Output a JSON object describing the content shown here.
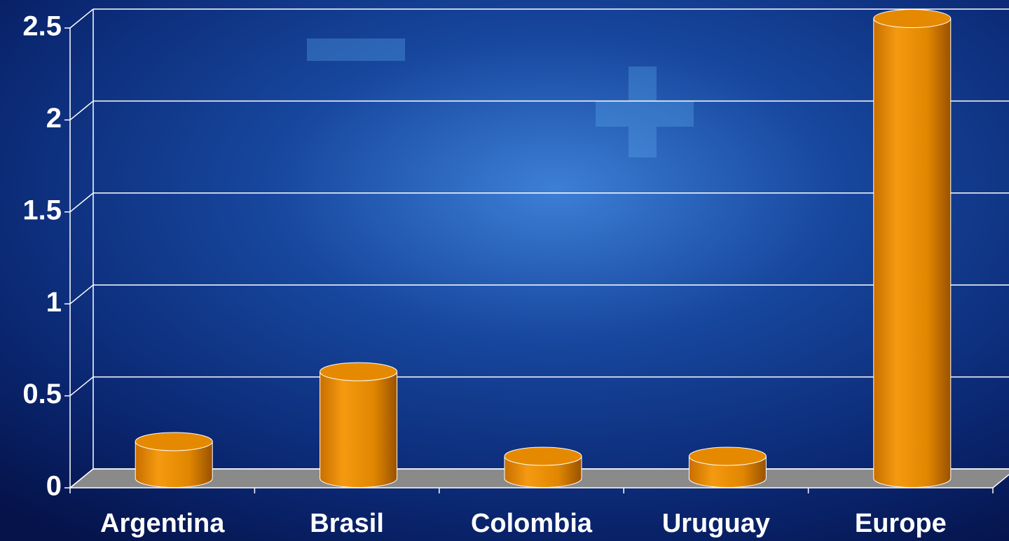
{
  "chart_data": {
    "type": "bar",
    "style": "3d-cylinder",
    "categories": [
      "Argentina",
      "Brasil",
      "Colombia",
      "Uruguay",
      "Europe"
    ],
    "values": [
      0.2,
      0.58,
      0.12,
      0.12,
      2.5
    ],
    "color": "#e58a00",
    "ylim": [
      0,
      2.5
    ],
    "yticks": [
      0,
      0.5,
      1,
      1.5,
      2,
      2.5
    ],
    "grid": true
  }
}
